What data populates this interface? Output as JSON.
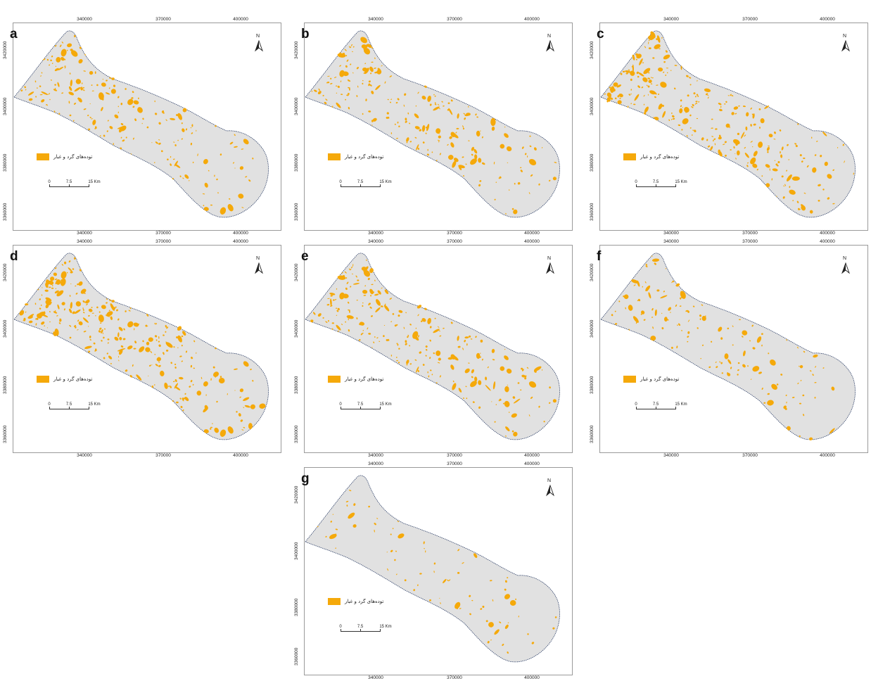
{
  "colors": {
    "study_area": "#E1E1E1",
    "dust": "#F5A90A",
    "outline": "#2C3E66"
  },
  "map": {
    "x_ticks": [
      "340000",
      "370000",
      "400000"
    ],
    "y_ticks": [
      "3420000",
      "3400000",
      "3380000",
      "3360000"
    ],
    "north_label": "N",
    "legend_label": "توده‌های گرد و غبار",
    "scale_labels": [
      "0",
      "7.5",
      "15 Km"
    ]
  },
  "panels": [
    {
      "label": "a",
      "dust_level": 0.42
    },
    {
      "label": "b",
      "dust_level": 0.48
    },
    {
      "label": "c",
      "dust_level": 0.62
    },
    {
      "label": "d",
      "dust_level": 0.66
    },
    {
      "label": "e",
      "dust_level": 0.55
    },
    {
      "label": "f",
      "dust_level": 0.28
    },
    {
      "label": "g",
      "dust_level": 0.1
    }
  ]
}
